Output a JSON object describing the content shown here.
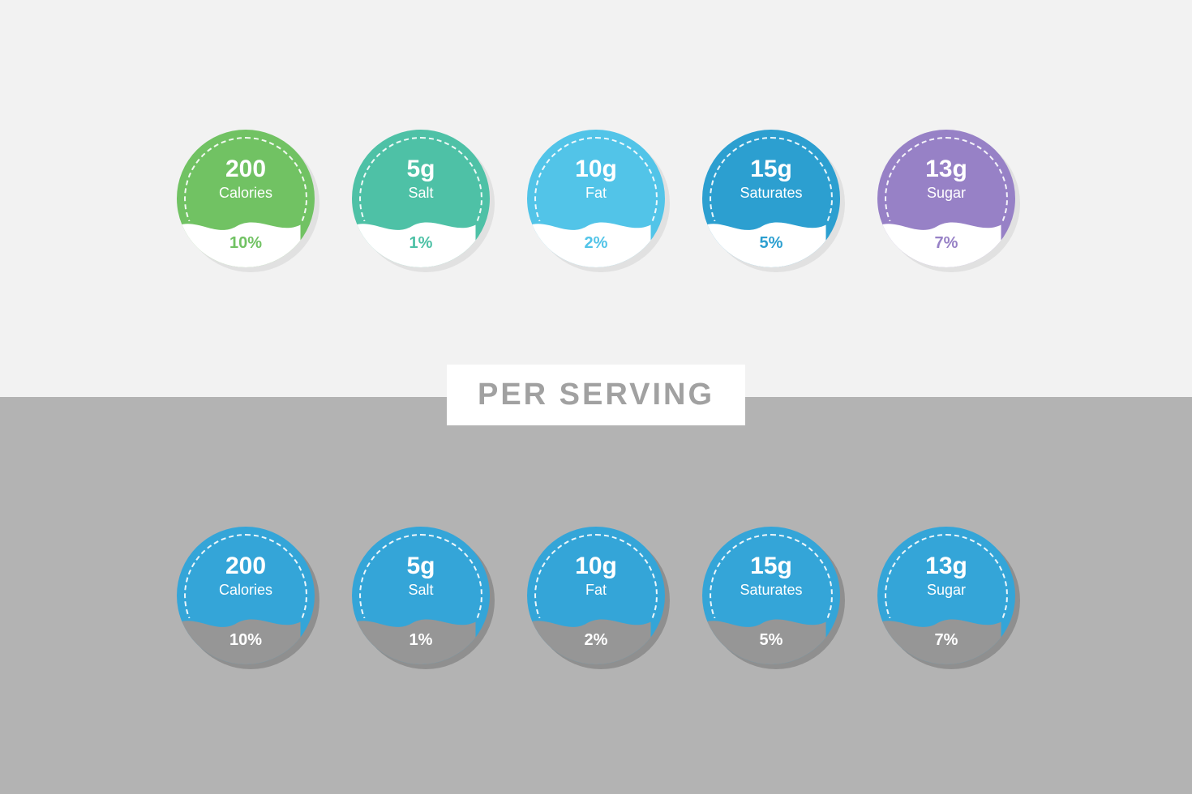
{
  "title": "PER SERVING",
  "title_color": "#a1a1a1",
  "top_bg": "#f2f2f2",
  "bottom_bg": "#b3b3b3",
  "top_shadow": "#e1e1e1",
  "bottom_shadow": "#8f8f8f",
  "top_wave_fill": "#ffffff",
  "bottom_wave_fill": "#969696",
  "bottom_pct_color": "#ffffff",
  "top_row": [
    {
      "name": "calories",
      "value": "200",
      "label": "Calories",
      "percent": "10%",
      "color": "#71c263",
      "pct_color": "#71c263"
    },
    {
      "name": "salt",
      "value": "5g",
      "label": "Salt",
      "percent": "1%",
      "color": "#4ec1a6",
      "pct_color": "#4ec1a6"
    },
    {
      "name": "fat",
      "value": "10g",
      "label": "Fat",
      "percent": "2%",
      "color": "#52c4e8",
      "pct_color": "#52c4e8"
    },
    {
      "name": "saturates",
      "value": "15g",
      "label": "Saturates",
      "percent": "5%",
      "color": "#2c9fd0",
      "pct_color": "#2c9fd0"
    },
    {
      "name": "sugar",
      "value": "13g",
      "label": "Sugar",
      "percent": "7%",
      "color": "#9781c6",
      "pct_color": "#9781c6"
    }
  ],
  "bottom_row": [
    {
      "name": "calories",
      "value": "200",
      "label": "Calories",
      "percent": "10%",
      "color": "#34a5d8"
    },
    {
      "name": "salt",
      "value": "5g",
      "label": "Salt",
      "percent": "1%",
      "color": "#34a5d8"
    },
    {
      "name": "fat",
      "value": "10g",
      "label": "Fat",
      "percent": "2%",
      "color": "#34a5d8"
    },
    {
      "name": "saturates",
      "value": "15g",
      "label": "Saturates",
      "percent": "5%",
      "color": "#34a5d8"
    },
    {
      "name": "sugar",
      "value": "13g",
      "label": "Sugar",
      "percent": "7%",
      "color": "#34a5d8"
    }
  ]
}
